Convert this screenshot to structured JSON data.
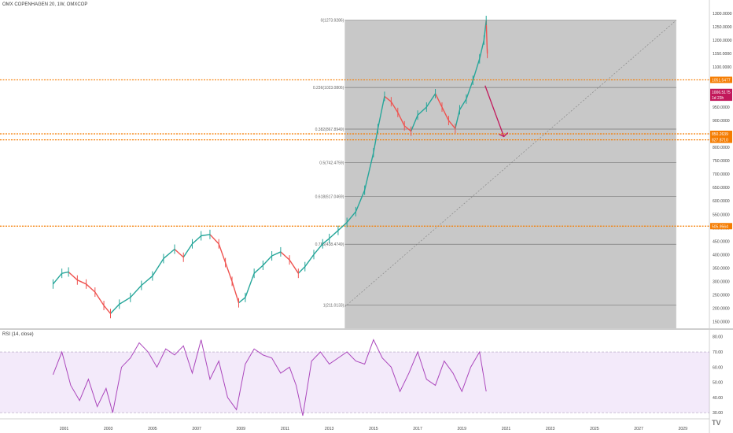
{
  "header": {
    "symbol_line": "OMX COPENHAGEN 20, 1W, OMXCOP",
    "rsi_title": "RSI (14, close)"
  },
  "chart_data": {
    "type": "line",
    "title": "OMX COPENHAGEN 20, 1W, OMXCOP",
    "y_ticks": [
      "1300.0000",
      "1250.0000",
      "1200.0000",
      "1150.0000",
      "1100.0000",
      "1050.0000",
      "1000.0000",
      "950.0000",
      "900.0000",
      "850.0000",
      "800.0000",
      "750.0000",
      "700.0000",
      "650.0000",
      "600.0000",
      "550.0000",
      "500.0000",
      "450.0000",
      "400.0000",
      "350.0000",
      "300.0000",
      "250.0000",
      "200.0000",
      "150.0000"
    ],
    "x_ticks": [
      "2001",
      "2003",
      "2005",
      "2007",
      "2009",
      "2011",
      "2013",
      "2015",
      "2017",
      "2019",
      "2021",
      "2023",
      "2025",
      "2027",
      "2029"
    ],
    "rsi_ticks": [
      "80.00",
      "70.00",
      "60.00",
      "50.00",
      "40.00",
      "30.00"
    ],
    "price_labels": [
      {
        "text": "1051.5477",
        "value": 1051.5477,
        "color": "#f57c00"
      },
      {
        "text": "1006.5175",
        "value": 1006.5175,
        "color": "#c2185b"
      },
      {
        "text": "1d 23h",
        "value": 985,
        "color": "#c2185b"
      },
      {
        "text": "850.2639",
        "value": 850.2639,
        "color": "#f57c00"
      },
      {
        "text": "827.8710",
        "value": 827.871,
        "color": "#f57c00"
      },
      {
        "text": "505.9564",
        "value": 505.9564,
        "color": "#f57c00"
      }
    ],
    "horizontal_levels": [
      1051.5477,
      850.2639,
      827.871,
      505.9564
    ],
    "fib_levels": [
      {
        "label": "0(1273.9286)",
        "value": 1273.9286
      },
      {
        "label": "0.236(1023.0806)",
        "value": 1023.0806
      },
      {
        "label": "0.382(867.8949)",
        "value": 867.8949
      },
      {
        "label": "0.5(742.4759)",
        "value": 742.4759
      },
      {
        "label": "0.618(617.0469)",
        "value": 617.0469
      },
      {
        "label": "0.786(438.4749)",
        "value": 438.4749
      },
      {
        "label": "1(211.0133)",
        "value": 211.0133
      }
    ],
    "fib_box": {
      "x_start": 2013.7,
      "x_end": 2028.7
    },
    "price_series": {
      "x": [
        2000.5,
        2000.9,
        2001.2,
        2001.6,
        2002.0,
        2002.4,
        2002.8,
        2003.1,
        2003.5,
        2004.0,
        2004.5,
        2005.0,
        2005.5,
        2006.0,
        2006.4,
        2006.8,
        2007.2,
        2007.6,
        2008.0,
        2008.3,
        2008.6,
        2008.9,
        2009.2,
        2009.6,
        2010.0,
        2010.4,
        2010.8,
        2011.2,
        2011.6,
        2011.9,
        2012.3,
        2012.7,
        2013.0,
        2013.4,
        2013.8,
        2014.2,
        2014.6,
        2015.0,
        2015.2,
        2015.5,
        2015.8,
        2016.1,
        2016.4,
        2016.7,
        2017.0,
        2017.4,
        2017.8,
        2018.1,
        2018.4,
        2018.7,
        2018.9,
        2019.2,
        2019.5,
        2019.8,
        2020.0,
        2020.1,
        2020.15
      ],
      "y": [
        290,
        330,
        335,
        305,
        290,
        260,
        210,
        180,
        215,
        240,
        285,
        320,
        385,
        420,
        390,
        440,
        470,
        475,
        440,
        370,
        300,
        220,
        240,
        330,
        360,
        395,
        410,
        380,
        330,
        355,
        400,
        440,
        460,
        490,
        520,
        560,
        640,
        780,
        870,
        990,
        970,
        930,
        880,
        860,
        920,
        950,
        1000,
        950,
        900,
        870,
        940,
        980,
        1050,
        1130,
        1200,
        1273,
        1150
      ]
    },
    "rsi_series": {
      "x": [
        2000.5,
        2000.9,
        2001.3,
        2001.7,
        2002.1,
        2002.5,
        2002.9,
        2003.2,
        2003.6,
        2004.0,
        2004.4,
        2004.8,
        2005.2,
        2005.6,
        2006.0,
        2006.4,
        2006.8,
        2007.2,
        2007.6,
        2008.0,
        2008.4,
        2008.8,
        2009.2,
        2009.6,
        2010.0,
        2010.4,
        2010.8,
        2011.2,
        2011.5,
        2011.8,
        2012.2,
        2012.6,
        2013.0,
        2013.4,
        2013.8,
        2014.2,
        2014.6,
        2015.0,
        2015.4,
        2015.8,
        2016.2,
        2016.6,
        2017.0,
        2017.4,
        2017.8,
        2018.2,
        2018.6,
        2019.0,
        2019.4,
        2019.8,
        2020.1
      ],
      "y": [
        55,
        70,
        48,
        38,
        52,
        34,
        46,
        30,
        60,
        66,
        76,
        70,
        60,
        72,
        68,
        74,
        56,
        78,
        52,
        64,
        40,
        32,
        62,
        72,
        68,
        66,
        56,
        60,
        48,
        28,
        64,
        70,
        62,
        66,
        70,
        64,
        62,
        78,
        66,
        60,
        44,
        56,
        70,
        52,
        48,
        64,
        56,
        44,
        60,
        70,
        44
      ]
    },
    "rsi_levels": {
      "upper": 70,
      "lower": 30
    },
    "xlim": [
      1998.1,
      2030.2
    ],
    "ylim": [
      125,
      1320
    ],
    "rsi_ylim": [
      27,
      84
    ],
    "colors": {
      "up": "#26a69a",
      "down": "#ef5350",
      "orange": "#f57c00",
      "rsi": "#ab47bc",
      "rsi_band": "rgba(155,80,210,0.12)",
      "fib_box": "#c8c8c8",
      "arrow": "#c2185b"
    },
    "legend": "none",
    "grid": false
  }
}
